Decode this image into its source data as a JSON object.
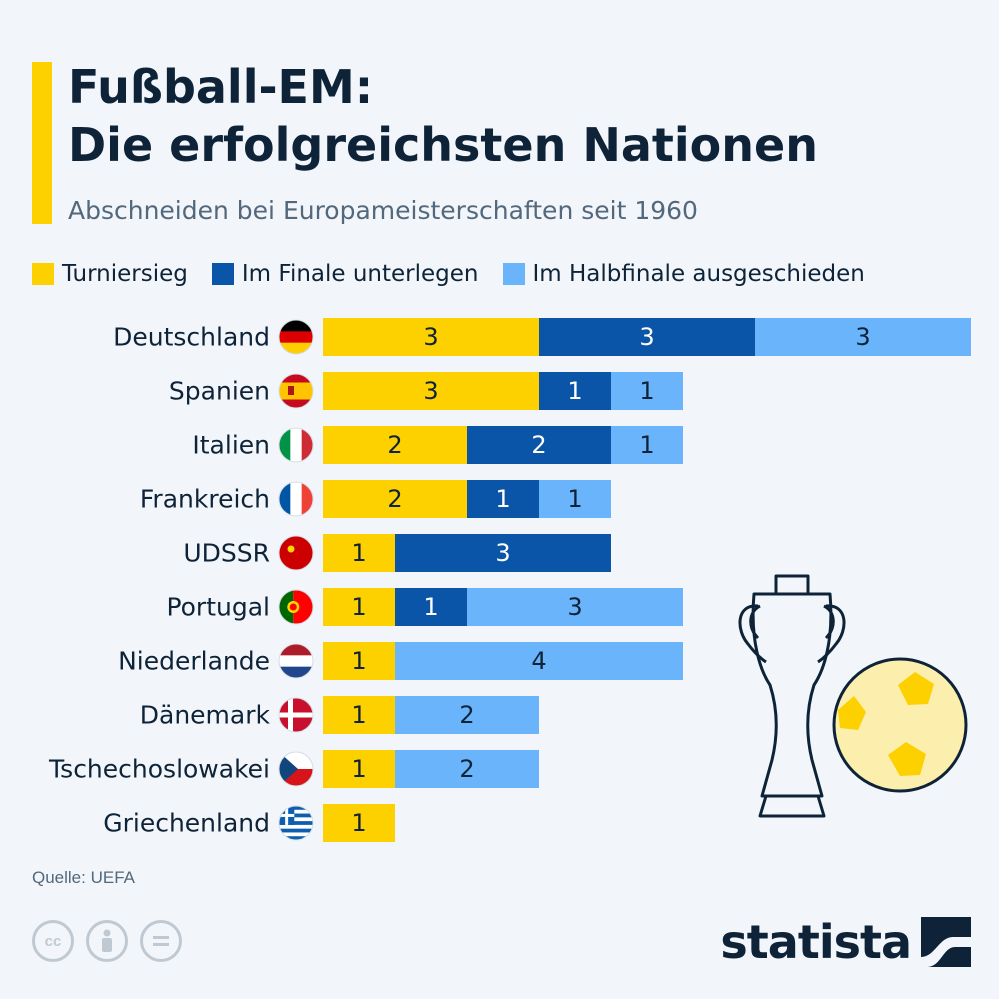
{
  "header": {
    "title_line1": "Fußball-EM:",
    "title_line2": "Die erfolgreichsten Nationen",
    "subtitle": "Abschneiden bei Europameisterschaften seit 1960"
  },
  "colors": {
    "win": "#fdd000",
    "final": "#0b55a9",
    "semi": "#69b4fb",
    "accent": "#fdd000",
    "text": "#0e2338"
  },
  "chart_data": {
    "type": "bar",
    "orientation": "horizontal",
    "stacked": true,
    "categories": [
      "Deutschland",
      "Spanien",
      "Italien",
      "Frankreich",
      "UDSSR",
      "Portugal",
      "Niederlande",
      "Dänemark",
      "Tschechoslowakei",
      "Griechenland"
    ],
    "flags": [
      "flag-germany-icon",
      "flag-spain-icon",
      "flag-italy-icon",
      "flag-france-icon",
      "flag-ussr-icon",
      "flag-portugal-icon",
      "flag-netherlands-icon",
      "flag-denmark-icon",
      "flag-czechia-icon",
      "flag-greece-icon"
    ],
    "series": [
      {
        "name": "Turniersieg",
        "color": "#fdd000",
        "values": [
          3,
          3,
          2,
          2,
          1,
          1,
          1,
          1,
          1,
          1
        ]
      },
      {
        "name": "Im Finale unterlegen",
        "color": "#0b55a9",
        "values": [
          3,
          1,
          2,
          1,
          3,
          1,
          0,
          0,
          0,
          0
        ]
      },
      {
        "name": "Im Halbfinale ausgeschieden",
        "color": "#69b4fb",
        "values": [
          3,
          1,
          1,
          1,
          0,
          3,
          4,
          2,
          2,
          0
        ]
      }
    ],
    "legend": "top",
    "grid": false,
    "xlim": [
      0,
      9
    ]
  },
  "footer": {
    "source": "Quelle: UEFA",
    "logo_text": "statista",
    "license_icons": [
      "cc-icon",
      "by-icon",
      "nd-icon"
    ]
  }
}
